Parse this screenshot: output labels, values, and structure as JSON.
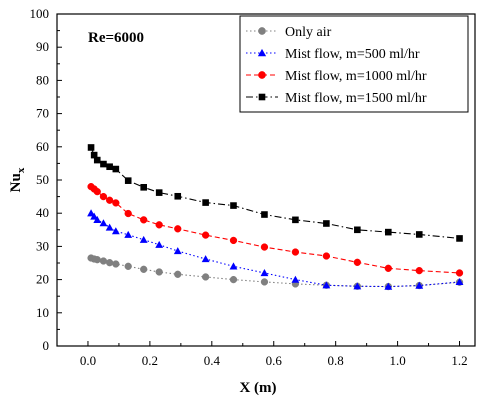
{
  "chart_data": {
    "type": "line",
    "title": "",
    "annotation": "Re=6000",
    "xlabel": "X (m)",
    "ylabel": "Nu",
    "ylabel_sub": "x",
    "xlim": [
      -0.1,
      1.25
    ],
    "ylim": [
      0,
      100
    ],
    "xticks": [
      0.0,
      0.2,
      0.4,
      0.6,
      0.8,
      1.0,
      1.2
    ],
    "xtick_labels": [
      "0.0",
      "0.2",
      "0.4",
      "0.6",
      "0.8",
      "1.0",
      "1.2"
    ],
    "yticks": [
      0,
      10,
      20,
      30,
      40,
      50,
      60,
      70,
      80,
      90,
      100
    ],
    "ytick_labels": [
      "0",
      "10",
      "20",
      "30",
      "40",
      "50",
      "60",
      "70",
      "80",
      "90",
      "100"
    ],
    "grid": false,
    "legend_position": "top-right",
    "series": [
      {
        "name": "Only air",
        "color": "#808080",
        "marker": "circle",
        "line": "dotted",
        "x": [
          0.01,
          0.02,
          0.03,
          0.05,
          0.07,
          0.09,
          0.13,
          0.18,
          0.23,
          0.29,
          0.38,
          0.47,
          0.57,
          0.67,
          0.77,
          0.87,
          0.97,
          1.07,
          1.2
        ],
        "y": [
          26.5,
          26.2,
          26.0,
          25.6,
          25.1,
          24.7,
          24.0,
          23.1,
          22.3,
          21.6,
          20.8,
          20.0,
          19.3,
          18.7,
          18.3,
          18.0,
          17.9,
          18.2,
          19.2
        ]
      },
      {
        "name": "Mist flow, m=500 ml/hr",
        "color": "#0000ff",
        "marker": "triangle",
        "line": "dotted",
        "x": [
          0.01,
          0.02,
          0.03,
          0.05,
          0.07,
          0.09,
          0.13,
          0.18,
          0.23,
          0.29,
          0.38,
          0.47,
          0.57,
          0.67,
          0.77,
          0.87,
          0.97,
          1.07,
          1.2
        ],
        "y": [
          40.0,
          39.0,
          38.0,
          37.0,
          35.7,
          34.6,
          33.5,
          32.0,
          30.5,
          28.6,
          26.2,
          24.0,
          22.0,
          20.0,
          18.3,
          18.0,
          17.9,
          18.2,
          19.3
        ]
      },
      {
        "name": "Mist flow, m=1000 ml/hr",
        "color": "#ff0000",
        "marker": "circle",
        "line": "dashed",
        "x": [
          0.01,
          0.02,
          0.03,
          0.05,
          0.07,
          0.09,
          0.13,
          0.18,
          0.23,
          0.29,
          0.38,
          0.47,
          0.57,
          0.67,
          0.77,
          0.87,
          0.97,
          1.07,
          1.2
        ],
        "y": [
          48.0,
          47.3,
          46.5,
          45.0,
          43.9,
          43.1,
          39.9,
          38.0,
          36.5,
          35.3,
          33.4,
          31.8,
          29.8,
          28.3,
          27.1,
          25.2,
          23.4,
          22.7,
          22.0
        ]
      },
      {
        "name": "Mist flow, m=1500 ml/hr",
        "color": "#000000",
        "marker": "square",
        "line": "dashdot",
        "x": [
          0.01,
          0.02,
          0.03,
          0.05,
          0.07,
          0.09,
          0.13,
          0.18,
          0.23,
          0.29,
          0.38,
          0.47,
          0.57,
          0.67,
          0.77,
          0.87,
          0.97,
          1.07,
          1.2
        ],
        "y": [
          59.8,
          57.5,
          56.0,
          54.8,
          54.0,
          53.3,
          49.8,
          47.8,
          46.2,
          45.1,
          43.2,
          42.3,
          39.6,
          38.0,
          36.9,
          35.0,
          34.3,
          33.6,
          32.4
        ]
      }
    ]
  }
}
